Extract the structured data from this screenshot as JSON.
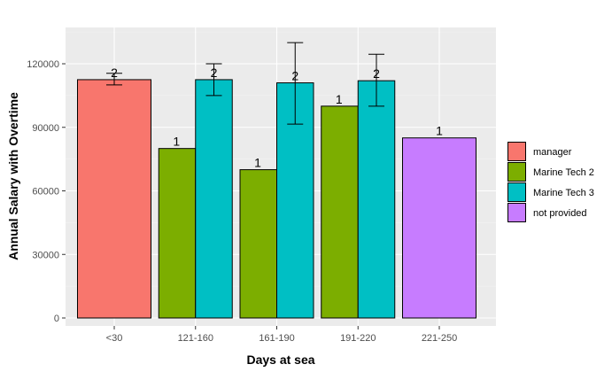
{
  "chart_data": {
    "type": "bar",
    "xlabel": "Days at sea",
    "ylabel": "Annual Salary with Overtime",
    "ylim": [
      0,
      132000
    ],
    "yticks": [
      0,
      30000,
      60000,
      90000,
      120000
    ],
    "ytick_labels": [
      "0",
      "30000",
      "60000",
      "90000",
      "120000"
    ],
    "categories": [
      "<30",
      "121-160",
      "161-190",
      "191-220",
      "221-250"
    ],
    "grid": true,
    "legend_position": "right",
    "legend": [
      {
        "key": "manager",
        "label": "manager",
        "color": "#F8766D"
      },
      {
        "key": "mt2",
        "label": "Marine Tech 2",
        "color": "#7CAE00"
      },
      {
        "key": "mt3",
        "label": "Marine Tech 3",
        "color": "#00BFC4"
      },
      {
        "key": "np",
        "label": "not provided",
        "color": "#C77CFF"
      }
    ],
    "bars": [
      {
        "category": "<30",
        "group": "manager",
        "value": 112500,
        "count_label": "2",
        "err_low": 110000,
        "err_high": 115500,
        "slot": 0,
        "nslots": 1
      },
      {
        "category": "121-160",
        "group": "mt2",
        "value": 80000,
        "count_label": "1",
        "slot": 0,
        "nslots": 2
      },
      {
        "category": "121-160",
        "group": "mt3",
        "value": 112500,
        "count_label": "2",
        "err_low": 105000,
        "err_high": 120000,
        "slot": 1,
        "nslots": 2
      },
      {
        "category": "161-190",
        "group": "mt2",
        "value": 70000,
        "count_label": "1",
        "slot": 0,
        "nslots": 2
      },
      {
        "category": "161-190",
        "group": "mt3",
        "value": 111000,
        "count_label": "2",
        "err_low": 91500,
        "err_high": 130000,
        "slot": 1,
        "nslots": 2
      },
      {
        "category": "191-220",
        "group": "mt2",
        "value": 100000,
        "count_label": "1",
        "slot": 0,
        "nslots": 2
      },
      {
        "category": "191-220",
        "group": "mt3",
        "value": 112000,
        "count_label": "2",
        "err_low": 100000,
        "err_high": 124500,
        "slot": 1,
        "nslots": 2
      },
      {
        "category": "221-250",
        "group": "np",
        "value": 85000,
        "count_label": "1",
        "slot": 0,
        "nslots": 1
      }
    ]
  }
}
